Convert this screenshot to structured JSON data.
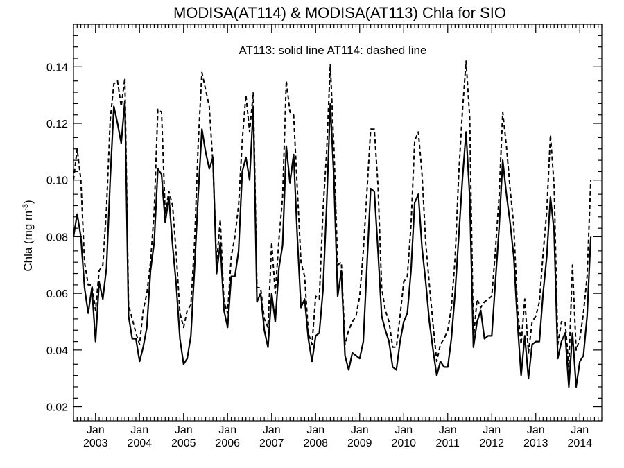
{
  "chart_data": {
    "type": "line",
    "title": "MODISA(AT114) & MODISA(AT113)  Chla for SIO",
    "annotation": "AT113: solid line   AT114: dashed line",
    "ylabel": "Chla (mg m",
    "ylabel_superscript": "-3",
    "ylabel_suffix": ")",
    "ylim": [
      0.015,
      0.155
    ],
    "xlim": [
      "2002-07",
      "2014-07"
    ],
    "y_ticks": [
      0.02,
      0.04,
      0.06,
      0.08,
      0.1,
      0.12,
      0.14
    ],
    "y_tick_labels": [
      "0.02",
      "0.04",
      "0.06",
      "0.08",
      "0.10",
      "0.12",
      "0.14"
    ],
    "x_ticks": [
      {
        "month": "Jan",
        "year": "2003"
      },
      {
        "month": "Jan",
        "year": "2004"
      },
      {
        "month": "Jan",
        "year": "2005"
      },
      {
        "month": "Jan",
        "year": "2006"
      },
      {
        "month": "Jan",
        "year": "2007"
      },
      {
        "month": "Jan",
        "year": "2008"
      },
      {
        "month": "Jan",
        "year": "2009"
      },
      {
        "month": "Jan",
        "year": "2010"
      },
      {
        "month": "Jan",
        "year": "2011"
      },
      {
        "month": "Jan",
        "year": "2012"
      },
      {
        "month": "Jan",
        "year": "2013"
      },
      {
        "month": "Jan",
        "year": "2014"
      }
    ],
    "x_start": "2002-07",
    "x_step": "1 month",
    "series": [
      {
        "name": "AT113",
        "style": "solid",
        "color": "#000000",
        "values": [
          0.08,
          0.088,
          0.08,
          0.062,
          0.053,
          0.062,
          0.043,
          0.064,
          0.058,
          0.069,
          0.1,
          0.126,
          0.12,
          0.113,
          0.128,
          0.052,
          0.044,
          0.044,
          0.036,
          0.041,
          0.048,
          0.068,
          0.078,
          0.104,
          0.102,
          0.085,
          0.094,
          0.077,
          0.063,
          0.044,
          0.035,
          0.037,
          0.045,
          0.069,
          0.095,
          0.118,
          0.11,
          0.104,
          0.108,
          0.067,
          0.078,
          0.054,
          0.048,
          0.066,
          0.066,
          0.075,
          0.103,
          0.108,
          0.1,
          0.126,
          0.057,
          0.06,
          0.047,
          0.041,
          0.06,
          0.05,
          0.069,
          0.077,
          0.112,
          0.099,
          0.109,
          0.08,
          0.055,
          0.058,
          0.044,
          0.036,
          0.045,
          0.046,
          0.061,
          0.091,
          0.127,
          0.1,
          0.059,
          0.068,
          0.038,
          0.033,
          0.039,
          0.038,
          0.037,
          0.043,
          0.07,
          0.097,
          0.096,
          0.075,
          0.052,
          0.047,
          0.043,
          0.034,
          0.033,
          0.043,
          0.05,
          0.053,
          0.068,
          0.092,
          0.095,
          0.076,
          0.064,
          0.05,
          0.04,
          0.031,
          0.036,
          0.034,
          0.034,
          0.044,
          0.06,
          0.08,
          0.1,
          0.117,
          0.094,
          0.041,
          0.05,
          0.054,
          0.044,
          0.045,
          0.045,
          0.064,
          0.083,
          0.107,
          0.095,
          0.085,
          0.073,
          0.05,
          0.031,
          0.045,
          0.03,
          0.042,
          0.043,
          0.043,
          0.06,
          0.073,
          0.094,
          0.082,
          0.037,
          0.043,
          0.046,
          0.027,
          0.046,
          0.027,
          0.036,
          0.038,
          0.052,
          0.08
        ]
      },
      {
        "name": "AT114",
        "style": "dashed",
        "color": "#000000",
        "values": [
          0.1,
          0.111,
          0.1,
          0.071,
          0.063,
          0.063,
          0.054,
          0.068,
          0.07,
          0.09,
          0.121,
          0.134,
          0.135,
          0.126,
          0.136,
          0.056,
          0.051,
          0.046,
          0.042,
          0.054,
          0.06,
          0.071,
          0.089,
          0.125,
          0.124,
          0.088,
          0.096,
          0.091,
          0.074,
          0.053,
          0.048,
          0.054,
          0.056,
          0.078,
          0.113,
          0.138,
          0.132,
          0.126,
          0.106,
          0.071,
          0.086,
          0.057,
          0.053,
          0.073,
          0.08,
          0.091,
          0.114,
          0.13,
          0.117,
          0.131,
          0.062,
          0.062,
          0.051,
          0.048,
          0.078,
          0.06,
          0.079,
          0.094,
          0.135,
          0.124,
          0.123,
          0.097,
          0.071,
          0.066,
          0.046,
          0.042,
          0.059,
          0.058,
          0.089,
          0.11,
          0.141,
          0.111,
          0.07,
          0.071,
          0.042,
          0.047,
          0.05,
          0.052,
          0.059,
          0.075,
          0.096,
          0.118,
          0.118,
          0.098,
          0.062,
          0.054,
          0.05,
          0.041,
          0.041,
          0.052,
          0.064,
          0.066,
          0.084,
          0.114,
          0.117,
          0.102,
          0.078,
          0.063,
          0.049,
          0.036,
          0.042,
          0.044,
          0.047,
          0.055,
          0.072,
          0.102,
          0.124,
          0.142,
          0.122,
          0.044,
          0.058,
          0.055,
          0.057,
          0.058,
          0.059,
          0.075,
          0.094,
          0.124,
          0.112,
          0.097,
          0.084,
          0.055,
          0.042,
          0.058,
          0.039,
          0.05,
          0.052,
          0.057,
          0.074,
          0.089,
          0.116,
          0.098,
          0.042,
          0.05,
          0.05,
          0.034,
          0.07,
          0.04,
          0.044,
          0.053,
          0.066,
          0.1
        ]
      }
    ],
    "grid": false,
    "legend": "annotation text at top"
  }
}
